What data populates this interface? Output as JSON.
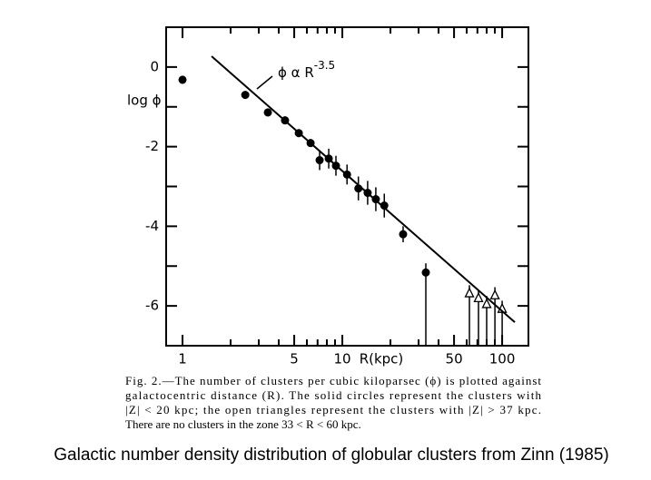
{
  "chart_data": {
    "type": "scatter",
    "xlabel": "R(kpc)",
    "ylabel": "log ϕ",
    "xscale": "log",
    "xlim": [
      0.79,
      146
    ],
    "ylim": [
      -7,
      1
    ],
    "xticks": [
      1,
      5,
      10,
      50,
      100
    ],
    "xminorticks": [
      2,
      3,
      4,
      6,
      7,
      8,
      9,
      20,
      30,
      40,
      60,
      70,
      80,
      90
    ],
    "yticks": [
      -6,
      -4,
      -2,
      0
    ],
    "yminorticks": [
      -5,
      -3,
      -1
    ],
    "color": "#000000",
    "series": [
      {
        "marker": "circle",
        "filled": true,
        "color": "#000000",
        "x": [
          1,
          2.47,
          3.42,
          4.38,
          5.34,
          6.33,
          7.21,
          8.22,
          9.12,
          10.7,
          12.6,
          14.4,
          16.2,
          18.3,
          24.0,
          33.3
        ],
        "y": [
          -0.32,
          -0.7,
          -1.14,
          -1.34,
          -1.66,
          -1.91,
          -2.34,
          -2.3,
          -2.48,
          -2.7,
          -3.05,
          -3.16,
          -3.32,
          -3.48,
          -4.2,
          -5.16
        ],
        "yerr_low": [
          0.1,
          0.1,
          0.1,
          0.1,
          0.1,
          0.1,
          0.25,
          0.25,
          0.25,
          0.25,
          0.3,
          0.3,
          0.3,
          0.3,
          0.2,
          1.84
        ],
        "yerr_high": [
          0.1,
          0.1,
          0.1,
          0.1,
          0.1,
          0.1,
          0.25,
          0.25,
          0.25,
          0.25,
          0.3,
          0.3,
          0.3,
          0.3,
          0.2,
          0.23
        ]
      },
      {
        "marker": "triangle",
        "filled": false,
        "color": "#000000",
        "x": [
          62.4,
          71.1,
          80,
          90.1,
          100
        ],
        "y": [
          -5.68,
          -5.8,
          -5.95,
          -5.73,
          -6.07
        ],
        "yerr_low": [
          1.32,
          1.2,
          1.05,
          1.27,
          0.93
        ],
        "yerr_high": [
          0.2,
          0.2,
          0.2,
          0.2,
          0.2
        ]
      },
      {
        "marker": "line",
        "color": "#000000",
        "x": [
          1.52,
          120
        ],
        "y": [
          0.27,
          -6.41
        ]
      }
    ],
    "annotation": {
      "text": "ϕ α R",
      "superscript": "-3.5"
    }
  },
  "caption": {
    "lines": [
      "Fig. 2.—The number of clusters per cubic kiloparsec (ϕ) is plotted against",
      "galactocentric distance (R). The solid circles represent the clusters with",
      "|Z| < 20 kpc; the open triangles represent the clusters with |Z| > 37 kpc.",
      "There are no clusters in the zone 33 < R < 60 kpc."
    ]
  },
  "footer": "Galactic number density distribution of globular clusters from Zinn (1985)"
}
